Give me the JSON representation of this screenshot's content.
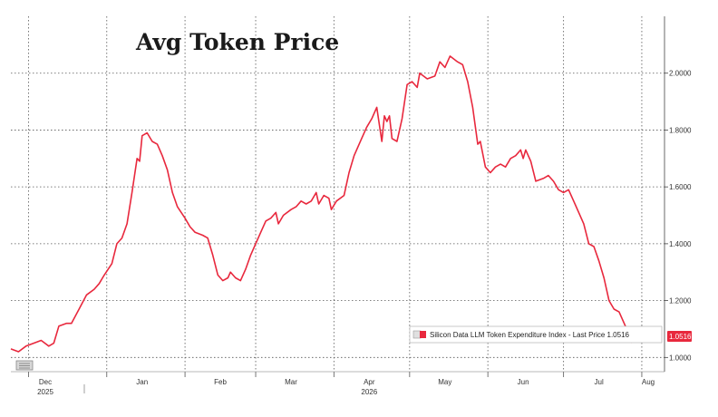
{
  "chart_data": {
    "type": "line",
    "title": "Avg Token Price",
    "xlabel": "",
    "ylabel": "",
    "y_axis_position": "right",
    "ylim": [
      0.95,
      2.2
    ],
    "yticks": [
      1.0,
      1.2,
      1.4,
      1.6,
      1.8,
      2.0
    ],
    "ytick_labels": [
      "1.0000",
      "1.2000",
      "1.4000",
      "1.6000",
      "1.8000",
      "2.0000"
    ],
    "xlim": [
      "2025-11-24",
      "2026-08-10"
    ],
    "xticks": [
      {
        "date": "2025-12-01",
        "label": "Dec",
        "year": "2025"
      },
      {
        "date": "2026-01-01",
        "label": "Jan",
        "year": ""
      },
      {
        "date": "2026-02-01",
        "label": "Feb",
        "year": ""
      },
      {
        "date": "2026-03-01",
        "label": "Mar",
        "year": ""
      },
      {
        "date": "2026-04-01",
        "label": "Apr",
        "year": "2026"
      },
      {
        "date": "2026-05-01",
        "label": "May",
        "year": ""
      },
      {
        "date": "2026-06-01",
        "label": "Jun",
        "year": ""
      },
      {
        "date": "2026-07-01",
        "label": "Jul",
        "year": ""
      },
      {
        "date": "2026-08-01",
        "label": "Aug",
        "year": ""
      }
    ],
    "grid": true,
    "legend_placement": "bottom-right",
    "series": [
      {
        "name": "Silicon Data LLM Token Expenditure Index - Last Price 1.0516",
        "color": "#e8283d",
        "last_value_label": "1.0516",
        "points": [
          [
            "2025-11-24",
            1.03
          ],
          [
            "2025-11-27",
            1.02
          ],
          [
            "2025-11-30",
            1.04
          ],
          [
            "2025-12-03",
            1.05
          ],
          [
            "2025-12-06",
            1.06
          ],
          [
            "2025-12-09",
            1.04
          ],
          [
            "2025-12-11",
            1.05
          ],
          [
            "2025-12-13",
            1.11
          ],
          [
            "2025-12-16",
            1.12
          ],
          [
            "2025-12-18",
            1.12
          ],
          [
            "2025-12-21",
            1.17
          ],
          [
            "2025-12-24",
            1.22
          ],
          [
            "2025-12-27",
            1.24
          ],
          [
            "2025-12-29",
            1.26
          ],
          [
            "2025-12-31",
            1.29
          ],
          [
            "2026-01-03",
            1.33
          ],
          [
            "2026-01-05",
            1.4
          ],
          [
            "2026-01-07",
            1.42
          ],
          [
            "2026-01-09",
            1.47
          ],
          [
            "2026-01-11",
            1.58
          ],
          [
            "2026-01-13",
            1.7
          ],
          [
            "2026-01-14",
            1.69
          ],
          [
            "2026-01-15",
            1.78
          ],
          [
            "2026-01-17",
            1.79
          ],
          [
            "2026-01-19",
            1.76
          ],
          [
            "2026-01-21",
            1.75
          ],
          [
            "2026-01-23",
            1.71
          ],
          [
            "2026-01-25",
            1.66
          ],
          [
            "2026-01-27",
            1.58
          ],
          [
            "2026-01-29",
            1.53
          ],
          [
            "2026-02-01",
            1.49
          ],
          [
            "2026-02-03",
            1.46
          ],
          [
            "2026-02-05",
            1.44
          ],
          [
            "2026-02-08",
            1.43
          ],
          [
            "2026-02-10",
            1.42
          ],
          [
            "2026-02-12",
            1.36
          ],
          [
            "2026-02-14",
            1.29
          ],
          [
            "2026-02-16",
            1.27
          ],
          [
            "2026-02-18",
            1.28
          ],
          [
            "2026-02-19",
            1.3
          ],
          [
            "2026-02-21",
            1.28
          ],
          [
            "2026-02-23",
            1.27
          ],
          [
            "2026-02-25",
            1.31
          ],
          [
            "2026-02-27",
            1.36
          ],
          [
            "2026-03-01",
            1.4
          ],
          [
            "2026-03-03",
            1.44
          ],
          [
            "2026-03-05",
            1.48
          ],
          [
            "2026-03-07",
            1.49
          ],
          [
            "2026-03-09",
            1.51
          ],
          [
            "2026-03-10",
            1.47
          ],
          [
            "2026-03-12",
            1.5
          ],
          [
            "2026-03-15",
            1.52
          ],
          [
            "2026-03-17",
            1.53
          ],
          [
            "2026-03-19",
            1.55
          ],
          [
            "2026-03-21",
            1.54
          ],
          [
            "2026-03-23",
            1.55
          ],
          [
            "2026-03-25",
            1.58
          ],
          [
            "2026-03-26",
            1.54
          ],
          [
            "2026-03-28",
            1.57
          ],
          [
            "2026-03-30",
            1.56
          ],
          [
            "2026-03-31",
            1.52
          ],
          [
            "2026-04-02",
            1.55
          ],
          [
            "2026-04-05",
            1.57
          ],
          [
            "2026-04-07",
            1.65
          ],
          [
            "2026-04-09",
            1.71
          ],
          [
            "2026-04-12",
            1.77
          ],
          [
            "2026-04-14",
            1.81
          ],
          [
            "2026-04-16",
            1.84
          ],
          [
            "2026-04-18",
            1.88
          ],
          [
            "2026-04-20",
            1.76
          ],
          [
            "2026-04-21",
            1.85
          ],
          [
            "2026-04-22",
            1.83
          ],
          [
            "2026-04-23",
            1.85
          ],
          [
            "2026-04-24",
            1.77
          ],
          [
            "2026-04-26",
            1.76
          ],
          [
            "2026-04-28",
            1.84
          ],
          [
            "2026-04-30",
            1.96
          ],
          [
            "2026-05-02",
            1.97
          ],
          [
            "2026-05-04",
            1.95
          ],
          [
            "2026-05-05",
            2.0
          ],
          [
            "2026-05-08",
            1.98
          ],
          [
            "2026-05-11",
            1.99
          ],
          [
            "2026-05-13",
            2.04
          ],
          [
            "2026-05-15",
            2.02
          ],
          [
            "2026-05-17",
            2.06
          ],
          [
            "2026-05-20",
            2.04
          ],
          [
            "2026-05-22",
            2.03
          ],
          [
            "2026-05-24",
            1.97
          ],
          [
            "2026-05-26",
            1.88
          ],
          [
            "2026-05-28",
            1.75
          ],
          [
            "2026-05-29",
            1.76
          ],
          [
            "2026-05-31",
            1.67
          ],
          [
            "2026-06-02",
            1.65
          ],
          [
            "2026-06-04",
            1.67
          ],
          [
            "2026-06-06",
            1.68
          ],
          [
            "2026-06-08",
            1.67
          ],
          [
            "2026-06-10",
            1.7
          ],
          [
            "2026-06-12",
            1.71
          ],
          [
            "2026-06-14",
            1.73
          ],
          [
            "2026-06-15",
            1.7
          ],
          [
            "2026-06-16",
            1.73
          ],
          [
            "2026-06-18",
            1.69
          ],
          [
            "2026-06-20",
            1.62
          ],
          [
            "2026-06-23",
            1.63
          ],
          [
            "2026-06-25",
            1.64
          ],
          [
            "2026-06-27",
            1.62
          ],
          [
            "2026-06-29",
            1.59
          ],
          [
            "2026-07-01",
            1.58
          ],
          [
            "2026-07-03",
            1.59
          ],
          [
            "2026-07-05",
            1.55
          ],
          [
            "2026-07-07",
            1.51
          ],
          [
            "2026-07-09",
            1.47
          ],
          [
            "2026-07-11",
            1.4
          ],
          [
            "2026-07-13",
            1.39
          ],
          [
            "2026-07-15",
            1.34
          ],
          [
            "2026-07-17",
            1.28
          ],
          [
            "2026-07-19",
            1.2
          ],
          [
            "2026-07-21",
            1.17
          ],
          [
            "2026-07-23",
            1.16
          ],
          [
            "2026-07-25",
            1.12
          ],
          [
            "2026-07-27",
            1.08
          ],
          [
            "2026-07-28",
            1.0516
          ]
        ]
      }
    ]
  }
}
